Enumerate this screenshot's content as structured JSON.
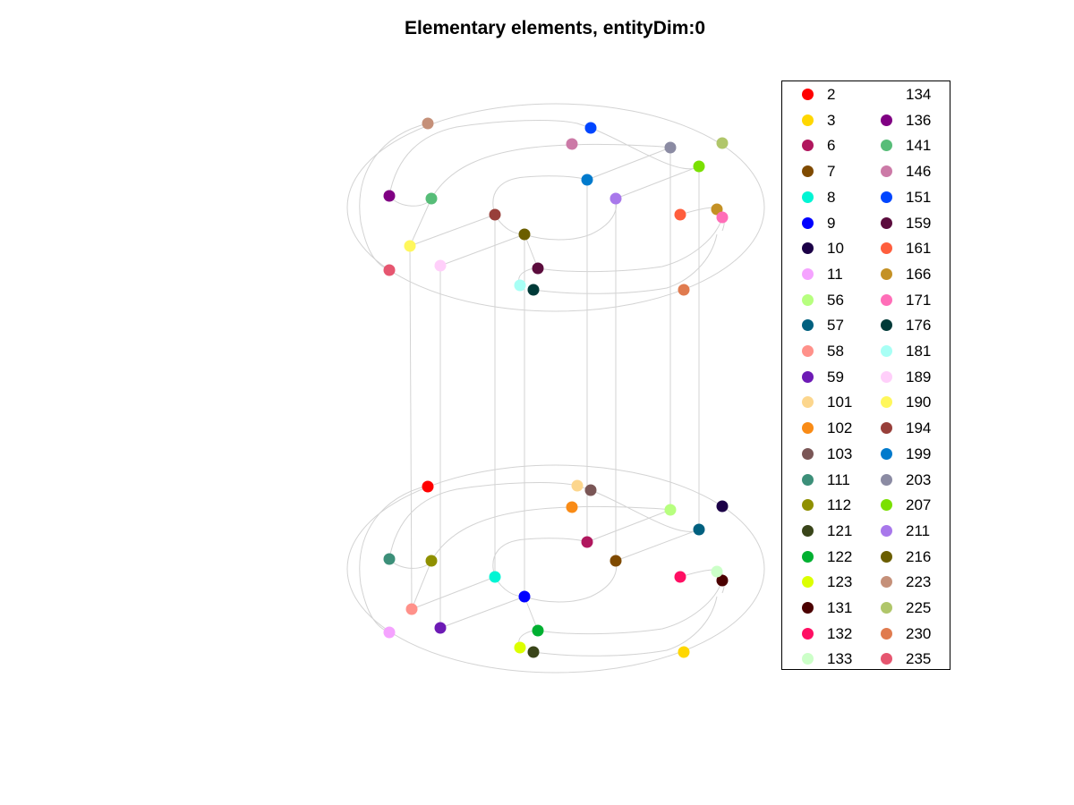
{
  "chart_data": {
    "type": "scatter",
    "title": "Elementary elements, entityDim:0",
    "grid": false,
    "legend_position": "right",
    "legend": [
      {
        "label": "2",
        "color": "#ff0000"
      },
      {
        "label": "3",
        "color": "#ffd700"
      },
      {
        "label": "6",
        "color": "#b0175e"
      },
      {
        "label": "7",
        "color": "#7f4a00"
      },
      {
        "label": "8",
        "color": "#00f5d4"
      },
      {
        "label": "9",
        "color": "#0000ff"
      },
      {
        "label": "10",
        "color": "#1b0047"
      },
      {
        "label": "11",
        "color": "#f5a3ff"
      },
      {
        "label": "56",
        "color": "#b7ff7f"
      },
      {
        "label": "57",
        "color": "#00607f"
      },
      {
        "label": "58",
        "color": "#ff918a"
      },
      {
        "label": "59",
        "color": "#6d1ab5"
      },
      {
        "label": "101",
        "color": "#fcd68d"
      },
      {
        "label": "102",
        "color": "#f98b16"
      },
      {
        "label": "103",
        "color": "#7a5656"
      },
      {
        "label": "111",
        "color": "#3c8f79"
      },
      {
        "label": "112",
        "color": "#8f9000"
      },
      {
        "label": "121",
        "color": "#394519"
      },
      {
        "label": "122",
        "color": "#00b031"
      },
      {
        "label": "123",
        "color": "#dcff00"
      },
      {
        "label": "131",
        "color": "#4b0000"
      },
      {
        "label": "132",
        "color": "#ff0f63"
      },
      {
        "label": "133",
        "color": "#ccffc8"
      },
      {
        "label": "134",
        "color": "#ffffff"
      },
      {
        "label": "136",
        "color": "#800083"
      },
      {
        "label": "141",
        "color": "#57bd78"
      },
      {
        "label": "146",
        "color": "#cc7aa7"
      },
      {
        "label": "151",
        "color": "#0045ff"
      },
      {
        "label": "159",
        "color": "#5b0c3d"
      },
      {
        "label": "161",
        "color": "#ff5e3d"
      },
      {
        "label": "166",
        "color": "#c49125"
      },
      {
        "label": "171",
        "color": "#ff6eb8"
      },
      {
        "label": "176",
        "color": "#003a38"
      },
      {
        "label": "181",
        "color": "#a8fff5"
      },
      {
        "label": "189",
        "color": "#ffcffa"
      },
      {
        "label": "190",
        "color": "#fff75c"
      },
      {
        "label": "194",
        "color": "#983f3a"
      },
      {
        "label": "199",
        "color": "#007acc"
      },
      {
        "label": "203",
        "color": "#8b8ba3"
      },
      {
        "label": "207",
        "color": "#7ae000"
      },
      {
        "label": "211",
        "color": "#a878eb"
      },
      {
        "label": "216",
        "color": "#6b5e00"
      },
      {
        "label": "223",
        "color": "#c59079"
      },
      {
        "label": "225",
        "color": "#b0c66a"
      },
      {
        "label": "230",
        "color": "#e07b4f"
      },
      {
        "label": "235",
        "color": "#e65670"
      }
    ]
  }
}
